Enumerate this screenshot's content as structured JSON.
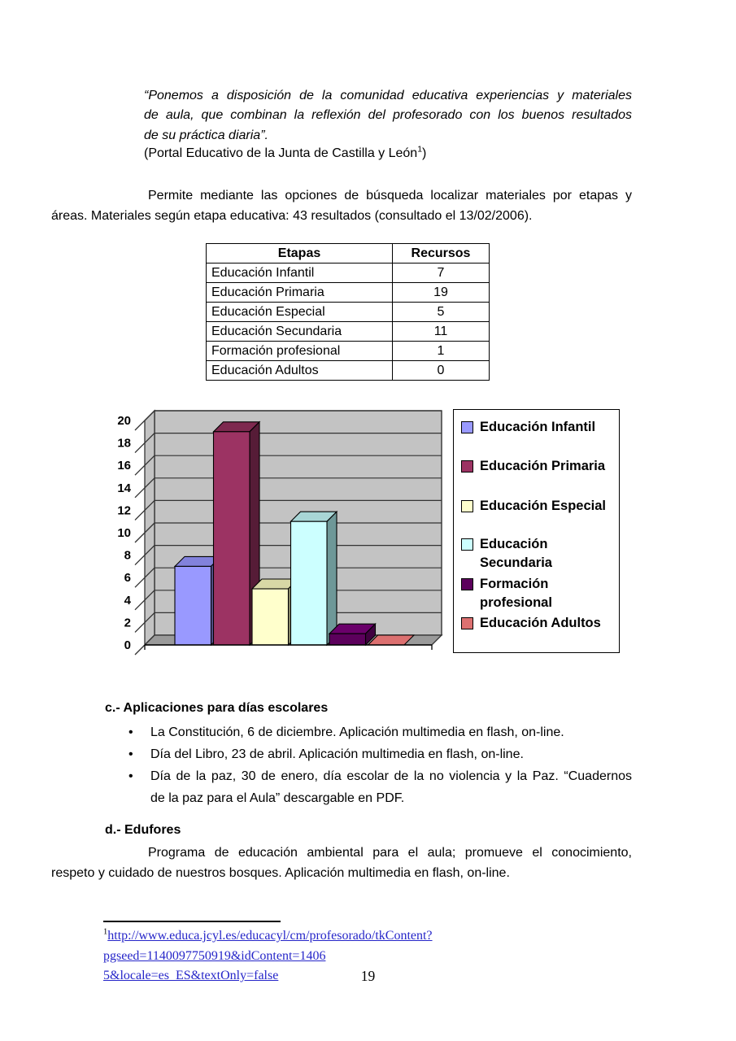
{
  "page": {
    "quote": {
      "lines": [
        "“Ponemos a disposición de la comunidad educativa experiencias y materiales",
        "de aula, que combinan la reflexión del profesorado con los buenos resultados",
        "de su práctica diaria”."
      ],
      "portal": {
        "pre": "(Portal Educativo de la Junta de Castilla y León",
        "sup": "1",
        "post": ")"
      }
    },
    "intro": {
      "lines": [
        "Permite mediante las opciones de búsqueda localizar materiales por etapas y",
        "áreas. Materiales según etapa educativa: 43 resultados (consultado el 13/02/2006)."
      ]
    },
    "table": {
      "headers": [
        "Etapas",
        "Recursos"
      ],
      "rows": [
        [
          "Educación Infantil",
          "7"
        ],
        [
          "Educación Primaria",
          "19"
        ],
        [
          "Educación Especial",
          "5"
        ],
        [
          "Educación Secundaria",
          "11"
        ],
        [
          "Formación profesional",
          "1"
        ],
        [
          "Educación Adultos",
          "0"
        ]
      ]
    },
    "section_c": {
      "heading": "c.- Aplicaciones para días escolares",
      "bullet_char": "•",
      "bullets": [
        {
          "lines": [
            "La Constitución, 6 de diciembre. Aplicación multimedia en flash, on-line."
          ]
        },
        {
          "lines": [
            "Día del Libro, 23 de abril. Aplicación multimedia en flash, on-line."
          ]
        },
        {
          "lines": [
            "Día de la paz, 30 de enero, día escolar de la no violencia y la Paz. “Cuadernos",
            "de la paz para el Aula” descargable en PDF."
          ]
        }
      ]
    },
    "section_d": {
      "heading": "d.- Edufores",
      "lines": [
        "Programa de educación ambiental para el aula; promueve el conocimiento,",
        "respeto y cuidado de nuestros bosques. Aplicación multimedia en flash, on-line."
      ]
    },
    "footnote": {
      "sup": "1",
      "line1": "http://www.educa.jcyl.es/educacyl/cm/profesorado/tkContent?pgseed=1140097750919&idContent=1406",
      "line2": "5&locale=es_ES&textOnly=false"
    },
    "page_number": "19"
  },
  "chart_data": {
    "type": "bar",
    "style": "3d",
    "title": "",
    "xlabel": "",
    "ylabel": "",
    "ylim": [
      0,
      20
    ],
    "ytick_step": 2,
    "grid": true,
    "legend_position": "right",
    "wall_color": "#C3C3C3",
    "floor_color": "#9A9A9A",
    "grid_color": "#333333",
    "categories": [
      "Educación Infantil",
      "Educación Primaria",
      "Educación Especial",
      "Educación Secundaria",
      "Formación profesional",
      "Educación Adultos"
    ],
    "series": [
      {
        "name": "Educación Infantil",
        "value": 7,
        "color": "#9999FF",
        "top": "#8282DC",
        "side": "#55558F",
        "legend": "Educación Infantil"
      },
      {
        "name": "Educación Primaria",
        "value": 19,
        "color": "#9C3363",
        "top": "#7E294F",
        "side": "#561C37",
        "legend": "Educación Primaria"
      },
      {
        "name": "Educación Especial",
        "value": 5,
        "color": "#FFFFCC",
        "top": "#D8D8A6",
        "side": "#90906E",
        "legend": "Educación Especial"
      },
      {
        "name": "Educación Secundaria",
        "value": 11,
        "color": "#CCFFFF",
        "top": "#A8D6D6",
        "side": "#6E9898",
        "legend": "Educación\nSecundaria"
      },
      {
        "name": "Formación profesional",
        "value": 1,
        "color": "#5C005C",
        "top": "#6A006A",
        "side": "#400040",
        "legend": "Formación\nprofesional"
      },
      {
        "name": "Educación Adultos",
        "value": 0,
        "color": "#DC7070",
        "top": "#DC7070",
        "side": "#A85454",
        "legend": "Educación Adultos"
      }
    ]
  }
}
